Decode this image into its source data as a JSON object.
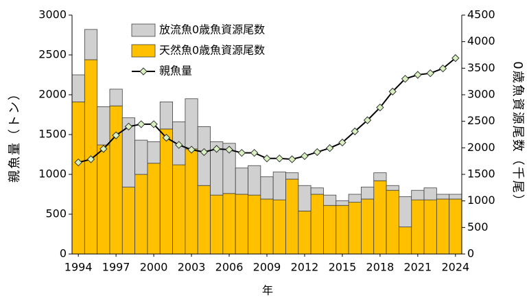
{
  "chart_data": {
    "type": "bar-line",
    "categories": [
      "1994",
      null,
      null,
      "1997",
      null,
      null,
      "2000",
      null,
      null,
      "2003",
      null,
      null,
      "2006",
      null,
      null,
      "2009",
      null,
      null,
      "2012",
      null,
      null,
      "2015",
      null,
      null,
      "2018",
      null,
      null,
      "2021",
      null,
      null,
      "2024"
    ],
    "x_label": "年",
    "y_label": "親魚量（トン）",
    "y2_label": "0歳魚資源尾数（千尾）",
    "ylim": [
      0,
      3000
    ],
    "yticks": [
      0,
      500,
      1000,
      1500,
      2000,
      2500,
      3000
    ],
    "y2lim": [
      0,
      4500
    ],
    "y2ticks": [
      0,
      500,
      1000,
      1500,
      2000,
      2500,
      3000,
      3500,
      4000,
      4500
    ],
    "series": [
      {
        "name": "天然魚0歳魚資源尾数",
        "type": "bar",
        "axis": "y2",
        "color": "#ffc000",
        "values": [
          2865,
          3660,
          2055,
          2790,
          1260,
          1500,
          1710,
          2355,
          1680,
          1980,
          1290,
          1110,
          1140,
          1125,
          1110,
          1035,
          1020,
          1410,
          810,
          1125,
          915,
          915,
          975,
          1035,
          1380,
          1200,
          510,
          1020,
          1020,
          1035,
          1035
        ]
      },
      {
        "name": "放流魚0歳魚資源尾数",
        "type": "bar",
        "axis": "y2",
        "color": "#d0d0d0",
        "values": [
          510,
          570,
          720,
          315,
          1305,
          645,
          405,
          510,
          810,
          945,
          1110,
          1005,
          945,
          495,
          555,
          420,
          525,
          120,
          480,
          120,
          195,
          90,
          150,
          225,
          150,
          90,
          570,
          180,
          225,
          90,
          90
        ]
      },
      {
        "name": "親魚量",
        "type": "line",
        "color": "#000000",
        "marker_color": "#d9f0c0",
        "values": [
          1150,
          1190,
          1320,
          1490,
          1600,
          1630,
          1630,
          1460,
          1370,
          1310,
          1280,
          1320,
          1310,
          1270,
          1270,
          1200,
          1200,
          1190,
          1230,
          1280,
          1330,
          1400,
          1540,
          1680,
          1840,
          2040,
          2200,
          2250,
          2270,
          2330,
          2460
        ]
      }
    ]
  }
}
